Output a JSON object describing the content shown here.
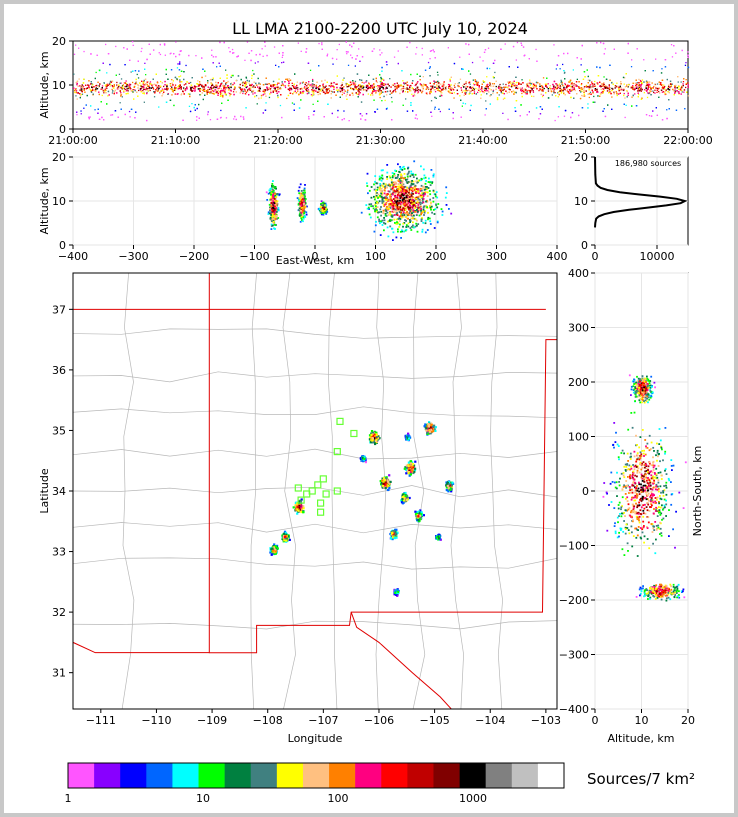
{
  "title": "LL LMA 2100-2200 UTC July 10, 2024",
  "colors": {
    "state_border": "#e00000",
    "county_lines": "#b8b8b8",
    "storm_markers": "#66ff33"
  },
  "chart_data": [
    {
      "id": "time_height",
      "type": "scatter",
      "ylabel": "Altitude, km",
      "xlabel": "",
      "ylim": [
        0,
        20
      ],
      "xlim": [
        "21:00:00",
        "22:00:00"
      ],
      "x_tick_labels": [
        "21:00:00",
        "21:10:00",
        "21:20:00",
        "21:30:00",
        "21:40:00",
        "21:50:00",
        "22:00:00"
      ],
      "y_ticks": [
        0,
        10,
        20
      ],
      "description_values": {
        "core_altitude_km": [
          7,
          12
        ],
        "max_altitude_km": 20
      }
    },
    {
      "id": "ew_altitude",
      "type": "scatter",
      "xlabel": "East-West, km",
      "ylabel": "Altitude, km",
      "xlim": [
        -400,
        400
      ],
      "ylim": [
        0,
        20
      ],
      "x_ticks": [
        -400,
        -300,
        -200,
        -100,
        0,
        100,
        200,
        300,
        400
      ],
      "y_ticks": [
        0,
        10,
        20
      ],
      "clusters": [
        {
          "x": [
            -80,
            -60
          ],
          "alt": [
            3,
            15
          ]
        },
        {
          "x": [
            -30,
            -15
          ],
          "alt": [
            5,
            14
          ]
        },
        {
          "x": [
            5,
            20
          ],
          "alt": [
            7,
            10
          ]
        },
        {
          "x": [
            75,
            215
          ],
          "alt": [
            2,
            19
          ]
        }
      ]
    },
    {
      "id": "altitude_histogram",
      "type": "line",
      "annotation": "186,980 sources",
      "xlim": [
        0,
        15000
      ],
      "ylim": [
        0,
        20
      ],
      "x_ticks": [
        0,
        10000
      ],
      "y_ticks": [
        0,
        10,
        20
      ],
      "x": [
        0,
        50,
        200,
        600,
        1500,
        3000,
        5500,
        8500,
        11500,
        13800,
        14500,
        13200,
        10500,
        7000,
        4000,
        2000,
        900,
        400,
        150,
        50,
        0
      ],
      "y": [
        4,
        5,
        6,
        6.5,
        7,
        7.5,
        8,
        8.5,
        9,
        9.5,
        10,
        10.5,
        11,
        11.5,
        12,
        12.5,
        13,
        13.5,
        14,
        16,
        20
      ]
    },
    {
      "id": "plan_view",
      "type": "scatter",
      "xlabel": "Longitude",
      "ylabel": "Latitude",
      "xlim": [
        -111.5,
        -102.8
      ],
      "ylim": [
        30.4,
        37.6
      ],
      "x_ticks": [
        -111,
        -110,
        -109,
        -108,
        -107,
        -106,
        -105,
        -104,
        -103
      ],
      "y_ticks": [
        31,
        32,
        33,
        34,
        35,
        36,
        37
      ],
      "clusters": [
        {
          "lon": -107.45,
          "lat": 33.75,
          "intensity": "high"
        },
        {
          "lon": -107.9,
          "lat": 33.05,
          "intensity": "medium"
        },
        {
          "lon": -107.7,
          "lat": 33.25,
          "intensity": "medium"
        },
        {
          "lon": -106.1,
          "lat": 34.9,
          "intensity": "high"
        },
        {
          "lon": -105.9,
          "lat": 34.15,
          "intensity": "high"
        },
        {
          "lon": -105.55,
          "lat": 33.9,
          "intensity": "medium"
        },
        {
          "lon": -105.45,
          "lat": 34.4,
          "intensity": "high"
        },
        {
          "lon": -105.3,
          "lat": 33.6,
          "intensity": "medium"
        },
        {
          "lon": -105.75,
          "lat": 33.3,
          "intensity": "medium"
        },
        {
          "lon": -105.1,
          "lat": 35.05,
          "intensity": "high"
        },
        {
          "lon": -104.75,
          "lat": 34.1,
          "intensity": "medium"
        },
        {
          "lon": -104.95,
          "lat": 33.25,
          "intensity": "low"
        },
        {
          "lon": -105.7,
          "lat": 32.35,
          "intensity": "low"
        },
        {
          "lon": -105.5,
          "lat": 34.9,
          "intensity": "low"
        },
        {
          "lon": -106.3,
          "lat": 34.55,
          "intensity": "low"
        }
      ],
      "station_markers": [
        {
          "lon": -107.1,
          "lat": 34.1
        },
        {
          "lon": -107.3,
          "lat": 33.95
        },
        {
          "lon": -107.45,
          "lat": 34.05
        },
        {
          "lon": -107.2,
          "lat": 34.0
        },
        {
          "lon": -107.0,
          "lat": 34.2
        },
        {
          "lon": -106.95,
          "lat": 33.95
        },
        {
          "lon": -107.05,
          "lat": 33.8
        },
        {
          "lon": -107.05,
          "lat": 33.65
        },
        {
          "lon": -106.75,
          "lat": 34.0
        },
        {
          "lon": -106.75,
          "lat": 34.65
        },
        {
          "lon": -106.7,
          "lat": 35.15
        },
        {
          "lon": -106.45,
          "lat": 34.95
        },
        {
          "lon": -107.4,
          "lat": 33.85
        }
      ]
    },
    {
      "id": "ns_altitude",
      "type": "scatter",
      "xlabel": "Altitude, km",
      "ylabel": "North-South, km",
      "xlim": [
        0,
        20
      ],
      "ylim": [
        -400,
        400
      ],
      "x_ticks": [
        0,
        10,
        20
      ],
      "y_ticks": [
        -400,
        -300,
        -200,
        -100,
        0,
        100,
        200,
        300,
        400
      ],
      "clusters": [
        {
          "ns": [
            -130,
            140
          ],
          "alt": [
            1,
            19
          ]
        },
        {
          "ns": [
            -200,
            -165
          ],
          "alt": [
            8,
            20
          ]
        },
        {
          "ns": [
            160,
            220
          ],
          "alt": [
            7,
            13
          ]
        }
      ]
    }
  ],
  "colorbar": {
    "label": "Sources/7 km²",
    "tick_labels": [
      "1",
      "10",
      "100",
      "1000"
    ],
    "colors": [
      "#ff55ff",
      "#8800ff",
      "#0000ff",
      "#0066ff",
      "#00ffff",
      "#00ff00",
      "#008040",
      "#408080",
      "#ffff00",
      "#ffc080",
      "#ff8000",
      "#ff0080",
      "#ff0000",
      "#c00000",
      "#800000",
      "#000000",
      "#808080",
      "#c0c0c0",
      "#ffffff"
    ]
  }
}
